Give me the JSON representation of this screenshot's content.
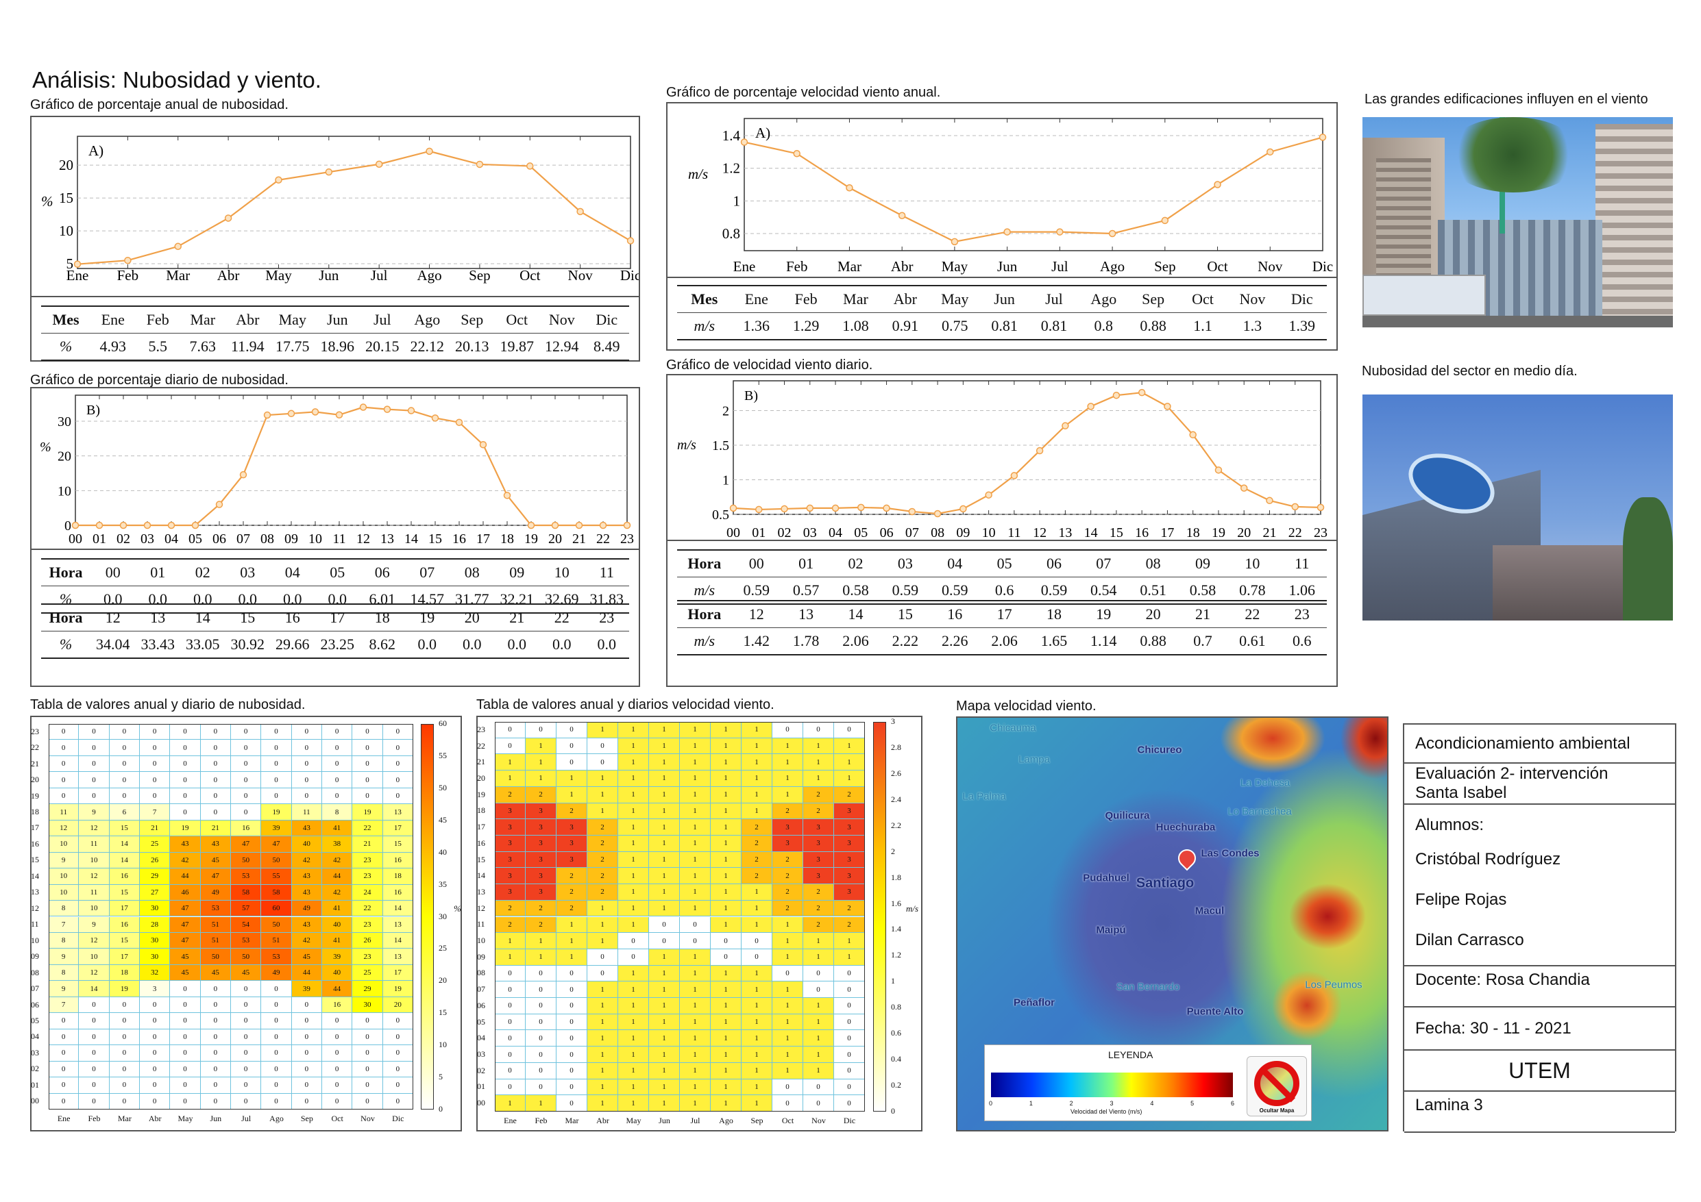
{
  "title": "Análisis: Nubosidad y viento.",
  "captions": {
    "nub_annual": "Gráfico de porcentaje anual de nubosidad.",
    "nub_daily": "Gráfico de porcentaje diario de nubosidad.",
    "wind_annual": "Gráfico de porcentaje velocidad viento anual.",
    "wind_daily": "Gráfico de velocidad viento diario.",
    "photo1": "Las grandes edificaciones influyen en el viento",
    "photo2": "Nubosidad del sector en medio día.",
    "nub_table": "Tabla de valores anual y diario de nubosidad.",
    "wind_table": "Tabla de valores anual y diarios velocidad viento.",
    "map": "Mapa velocidad viento."
  },
  "colors": {
    "line": "#f0a048",
    "accent": "#ff3c00"
  },
  "chart_data": [
    {
      "id": "nub_annual",
      "type": "line",
      "panel_label": "A)",
      "ylabel": "%",
      "categories": [
        "Ene",
        "Feb",
        "Mar",
        "Abr",
        "May",
        "Jun",
        "Jul",
        "Ago",
        "Sep",
        "Oct",
        "Nov",
        "Dic"
      ],
      "values": [
        4.93,
        5.5,
        7.63,
        11.94,
        17.75,
        18.96,
        20.15,
        22.12,
        20.13,
        19.87,
        12.94,
        8.49
      ],
      "yticks": [
        5,
        10,
        15,
        20
      ],
      "ylim": [
        4.27,
        24.4
      ],
      "grid": true,
      "table": {
        "head": "Mes",
        "row_label": "%",
        "values": [
          "4.93",
          "5.5",
          "7.63",
          "11.94",
          "17.75",
          "18.96",
          "20.15",
          "22.12",
          "20.13",
          "19.87",
          "12.94",
          "8.49"
        ]
      }
    },
    {
      "id": "nub_daily",
      "type": "line",
      "panel_label": "B)",
      "ylabel": "%",
      "categories": [
        "00",
        "01",
        "02",
        "03",
        "04",
        "05",
        "06",
        "07",
        "08",
        "09",
        "10",
        "11",
        "12",
        "13",
        "14",
        "15",
        "16",
        "17",
        "18",
        "19",
        "20",
        "21",
        "22",
        "23"
      ],
      "values": [
        0,
        0,
        0,
        0,
        0,
        0,
        6.01,
        14.57,
        31.77,
        32.21,
        32.69,
        31.83,
        34.04,
        33.43,
        33.05,
        30.92,
        29.66,
        23.25,
        8.62,
        0,
        0,
        0,
        0,
        0
      ],
      "yticks": [
        0,
        10,
        20,
        30
      ],
      "ylim": [
        0,
        37.5
      ],
      "grid": true,
      "table": {
        "head": "Hora",
        "row_label": "%",
        "values": [
          "0.0",
          "0.0",
          "0.0",
          "0.0",
          "0.0",
          "0.0",
          "6.01",
          "14.57",
          "31.77",
          "32.21",
          "32.69",
          "31.83",
          "34.04",
          "33.43",
          "33.05",
          "30.92",
          "29.66",
          "23.25",
          "8.62",
          "0.0",
          "0.0",
          "0.0",
          "0.0",
          "0.0"
        ]
      }
    },
    {
      "id": "wind_annual",
      "type": "line",
      "panel_label": "A)",
      "ylabel": "m/s",
      "categories": [
        "Ene",
        "Feb",
        "Mar",
        "Abr",
        "May",
        "Jun",
        "Jul",
        "Ago",
        "Sep",
        "Oct",
        "Nov",
        "Dic"
      ],
      "values": [
        1.36,
        1.29,
        1.08,
        0.91,
        0.75,
        0.81,
        0.81,
        0.8,
        0.88,
        1.1,
        1.3,
        1.39
      ],
      "yticks": [
        0.8,
        1,
        1.2,
        1.4
      ],
      "ylim": [
        0.695,
        1.505
      ],
      "grid": true,
      "table": {
        "head": "Mes",
        "row_label": "m/s",
        "values": [
          "1.36",
          "1.29",
          "1.08",
          "0.91",
          "0.75",
          "0.81",
          "0.81",
          "0.8",
          "0.88",
          "1.1",
          "1.3",
          "1.39"
        ]
      }
    },
    {
      "id": "wind_daily",
      "type": "line",
      "panel_label": "B)",
      "ylabel": "m/s",
      "categories": [
        "00",
        "01",
        "02",
        "03",
        "04",
        "05",
        "06",
        "07",
        "08",
        "09",
        "10",
        "11",
        "12",
        "13",
        "14",
        "15",
        "16",
        "17",
        "18",
        "19",
        "20",
        "21",
        "22",
        "23"
      ],
      "values": [
        0.59,
        0.57,
        0.58,
        0.59,
        0.59,
        0.6,
        0.59,
        0.54,
        0.51,
        0.58,
        0.78,
        1.06,
        1.42,
        1.78,
        2.06,
        2.22,
        2.26,
        2.06,
        1.65,
        1.14,
        0.88,
        0.7,
        0.61,
        0.6
      ],
      "yticks": [
        0.5,
        1,
        1.5,
        2
      ],
      "ylim": [
        0.5,
        2.43
      ],
      "grid": true,
      "table": {
        "head": "Hora",
        "row_label": "m/s",
        "values": [
          "0.59",
          "0.57",
          "0.58",
          "0.59",
          "0.59",
          "0.6",
          "0.59",
          "0.54",
          "0.51",
          "0.58",
          "0.78",
          "1.06",
          "1.42",
          "1.78",
          "2.06",
          "2.22",
          "2.26",
          "2.06",
          "1.65",
          "1.14",
          "0.88",
          "0.7",
          "0.61",
          "0.6"
        ]
      }
    },
    {
      "id": "nub_heatmap",
      "type": "heatmap",
      "colorbar_label": "%",
      "clim": [
        0,
        60
      ],
      "colorbar_ticks": [
        0,
        5,
        10,
        15,
        20,
        25,
        30,
        35,
        40,
        45,
        50,
        55,
        60
      ],
      "columns": [
        "Ene",
        "Feb",
        "Mar",
        "Abr",
        "May",
        "Jun",
        "Jul",
        "Ago",
        "Sep",
        "Oct",
        "Nov",
        "Dic"
      ],
      "rows": [
        "23",
        "22",
        "21",
        "20",
        "19",
        "18",
        "17",
        "16",
        "15",
        "14",
        "13",
        "12",
        "11",
        "10",
        "09",
        "08",
        "07",
        "06",
        "05",
        "04",
        "03",
        "02",
        "01",
        "00"
      ],
      "values": [
        [
          0,
          0,
          0,
          0,
          0,
          0,
          0,
          0,
          0,
          0,
          0,
          0
        ],
        [
          0,
          0,
          0,
          0,
          0,
          0,
          0,
          0,
          0,
          0,
          0,
          0
        ],
        [
          0,
          0,
          0,
          0,
          0,
          0,
          0,
          0,
          0,
          0,
          0,
          0
        ],
        [
          0,
          0,
          0,
          0,
          0,
          0,
          0,
          0,
          0,
          0,
          0,
          0
        ],
        [
          0,
          0,
          0,
          0,
          0,
          0,
          0,
          0,
          0,
          0,
          0,
          0
        ],
        [
          11,
          9,
          6,
          7,
          0,
          0,
          0,
          19,
          11,
          8,
          19,
          13
        ],
        [
          12,
          12,
          15,
          21,
          19,
          21,
          16,
          39,
          43,
          41,
          22,
          17
        ],
        [
          10,
          11,
          14,
          25,
          43,
          43,
          47,
          47,
          40,
          38,
          21,
          15
        ],
        [
          9,
          10,
          14,
          26,
          42,
          45,
          50,
          50,
          42,
          42,
          23,
          16
        ],
        [
          10,
          12,
          16,
          29,
          44,
          47,
          53,
          55,
          43,
          44,
          23,
          18
        ],
        [
          10,
          11,
          15,
          27,
          46,
          49,
          58,
          58,
          43,
          42,
          24,
          16
        ],
        [
          8,
          10,
          17,
          30,
          47,
          53,
          57,
          60,
          49,
          41,
          22,
          14
        ],
        [
          7,
          9,
          16,
          28,
          47,
          51,
          54,
          50,
          43,
          40,
          23,
          13
        ],
        [
          8,
          12,
          15,
          30,
          47,
          51,
          53,
          51,
          42,
          41,
          26,
          14
        ],
        [
          9,
          10,
          17,
          30,
          45,
          50,
          50,
          53,
          45,
          39,
          23,
          13
        ],
        [
          8,
          12,
          18,
          32,
          45,
          45,
          45,
          49,
          44,
          40,
          25,
          17
        ],
        [
          9,
          14,
          19,
          3,
          0,
          0,
          0,
          0,
          39,
          44,
          29,
          19
        ],
        [
          7,
          0,
          0,
          0,
          0,
          0,
          0,
          0,
          0,
          16,
          30,
          20
        ],
        [
          0,
          0,
          0,
          0,
          0,
          0,
          0,
          0,
          0,
          0,
          0,
          0
        ],
        [
          0,
          0,
          0,
          0,
          0,
          0,
          0,
          0,
          0,
          0,
          0,
          0
        ],
        [
          0,
          0,
          0,
          0,
          0,
          0,
          0,
          0,
          0,
          0,
          0,
          0
        ],
        [
          0,
          0,
          0,
          0,
          0,
          0,
          0,
          0,
          0,
          0,
          0,
          0
        ],
        [
          0,
          0,
          0,
          0,
          0,
          0,
          0,
          0,
          0,
          0,
          0,
          0
        ],
        [
          0,
          0,
          0,
          0,
          0,
          0,
          0,
          0,
          0,
          0,
          0,
          0
        ]
      ]
    },
    {
      "id": "wind_heatmap",
      "type": "heatmap",
      "colorbar_label": "m/s",
      "clim": [
        0,
        3
      ],
      "colorbar_ticks": [
        0,
        0.2,
        0.4,
        0.6,
        0.8,
        1,
        1.2,
        1.4,
        1.6,
        1.8,
        2,
        2.2,
        2.4,
        2.6,
        2.8,
        3
      ],
      "columns": [
        "Ene",
        "Feb",
        "Mar",
        "Abr",
        "May",
        "Jun",
        "Jul",
        "Ago",
        "Sep",
        "Oct",
        "Nov",
        "Dic"
      ],
      "rows": [
        "23",
        "22",
        "21",
        "20",
        "19",
        "18",
        "17",
        "16",
        "15",
        "14",
        "13",
        "12",
        "11",
        "10",
        "09",
        "08",
        "07",
        "06",
        "05",
        "04",
        "03",
        "02",
        "01",
        "00"
      ],
      "values": [
        [
          0,
          0,
          0,
          1,
          1,
          1,
          1,
          1,
          1,
          0,
          0,
          0
        ],
        [
          0,
          1,
          0,
          0,
          1,
          1,
          1,
          1,
          1,
          1,
          1,
          1
        ],
        [
          1,
          1,
          0,
          0,
          1,
          1,
          1,
          1,
          1,
          1,
          1,
          1
        ],
        [
          1,
          1,
          1,
          1,
          1,
          1,
          1,
          1,
          1,
          1,
          1,
          1
        ],
        [
          2,
          2,
          1,
          1,
          1,
          1,
          1,
          1,
          1,
          1,
          2,
          2
        ],
        [
          3,
          3,
          2,
          1,
          1,
          1,
          1,
          1,
          1,
          2,
          2,
          3
        ],
        [
          3,
          3,
          3,
          2,
          1,
          1,
          1,
          1,
          2,
          3,
          3,
          3
        ],
        [
          3,
          3,
          3,
          2,
          1,
          1,
          1,
          1,
          2,
          3,
          3,
          3
        ],
        [
          3,
          3,
          3,
          2,
          1,
          1,
          1,
          1,
          2,
          2,
          3,
          3
        ],
        [
          3,
          3,
          2,
          2,
          1,
          1,
          1,
          1,
          2,
          2,
          3,
          3
        ],
        [
          3,
          3,
          2,
          2,
          1,
          1,
          1,
          1,
          1,
          2,
          2,
          3
        ],
        [
          2,
          2,
          2,
          1,
          1,
          1,
          1,
          1,
          1,
          2,
          2,
          2
        ],
        [
          2,
          2,
          1,
          1,
          1,
          0,
          0,
          1,
          1,
          1,
          2,
          2
        ],
        [
          1,
          1,
          1,
          1,
          0,
          0,
          0,
          0,
          0,
          1,
          1,
          1
        ],
        [
          1,
          1,
          1,
          0,
          0,
          1,
          1,
          0,
          0,
          1,
          1,
          1
        ],
        [
          0,
          0,
          0,
          0,
          1,
          1,
          1,
          1,
          1,
          0,
          0,
          0
        ],
        [
          0,
          0,
          0,
          1,
          1,
          1,
          1,
          1,
          1,
          1,
          0,
          0
        ],
        [
          0,
          0,
          0,
          1,
          1,
          1,
          1,
          1,
          1,
          1,
          1,
          0
        ],
        [
          0,
          0,
          0,
          1,
          1,
          1,
          1,
          1,
          1,
          1,
          1,
          0
        ],
        [
          0,
          0,
          0,
          1,
          1,
          1,
          1,
          1,
          1,
          1,
          1,
          0
        ],
        [
          0,
          0,
          0,
          1,
          1,
          1,
          1,
          1,
          1,
          1,
          1,
          0
        ],
        [
          0,
          0,
          0,
          1,
          1,
          1,
          1,
          1,
          1,
          1,
          1,
          0
        ],
        [
          0,
          0,
          0,
          1,
          1,
          1,
          1,
          1,
          1,
          0,
          0,
          0
        ],
        [
          1,
          1,
          0,
          1,
          1,
          1,
          1,
          1,
          1,
          0,
          0,
          0
        ]
      ]
    }
  ],
  "map": {
    "places": [
      "Chicauma",
      "Lampa",
      "Chicureo",
      "La Dehesa",
      "La Palma",
      "Lo Barnechea",
      "Quilicura",
      "Huechuraba",
      "Las Condes",
      "Pudahuel",
      "Santiago",
      "Macul",
      "Maipú",
      "San Bernardo",
      "Peñaflor",
      "Puente Alto",
      "Los Peumos"
    ],
    "legend": {
      "title": "LEYENDA",
      "ticks": [
        "0",
        "1",
        "2",
        "3",
        "4",
        "5",
        "6"
      ],
      "axis_label": "Velocidad del Viento (m/s)",
      "hide_button": "Ocultar Mapa"
    }
  },
  "info": {
    "course": "Acondicionamiento ambiental",
    "evaluation_line1": "Evaluación 2- intervención",
    "evaluation_line2": "Santa Isabel",
    "students_label": "Alumnos:",
    "students": [
      "Cristóbal Rodríguez",
      "Felipe Rojas",
      "Dilan Carrasco"
    ],
    "teacher": "Docente: Rosa Chandia",
    "date": "Fecha: 30 - 11 - 2021",
    "university": "UTEM",
    "sheet": "Lamina 3"
  }
}
